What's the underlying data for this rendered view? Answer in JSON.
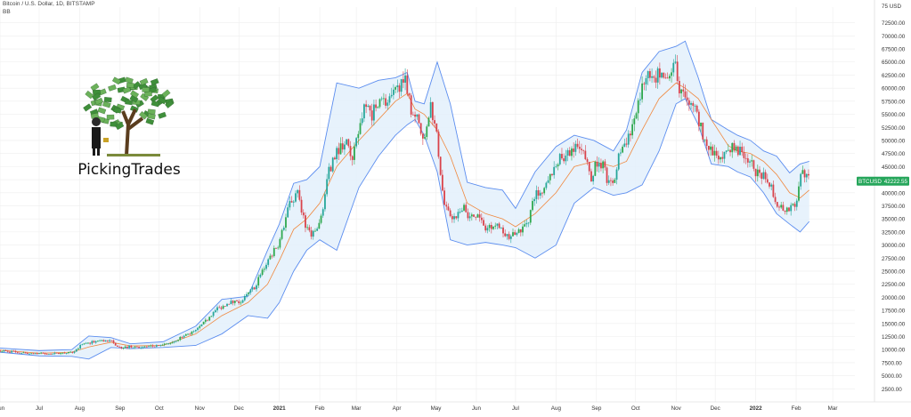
{
  "header": {
    "title": "Bitcoin / U.S. Dollar, 1D, BITSTAMP",
    "indicator": "BB"
  },
  "logo": {
    "text": "PickingTrades",
    "image": "money-tree-logo"
  },
  "colors": {
    "up": "#26a69a",
    "up_bright": "#2ea84f",
    "down": "#d9434b",
    "band_line": "#5b8def",
    "band_fill": "#e3f0fb",
    "basis": "#f0883e",
    "price_tag": "#26a65b",
    "grid": "#eeeeee"
  },
  "chart_data": {
    "type": "candlestick",
    "series_name": "BTCUSD",
    "last_price": "42222.55",
    "x_labels": [
      "Jun",
      "Jul",
      "Aug",
      "Sep",
      "Oct",
      "Nov",
      "Dec",
      "2021",
      "Feb",
      "Mar",
      "Apr",
      "May",
      "Jun",
      "Jul",
      "Aug",
      "Sep",
      "Oct",
      "Nov",
      "Dec",
      "2022",
      "Feb",
      "Mar"
    ],
    "x_label_days": [
      0,
      30,
      61,
      92,
      122,
      153,
      183,
      214,
      245,
      273,
      304,
      334,
      365,
      395,
      426,
      457,
      487,
      518,
      548,
      579,
      610,
      638
    ],
    "y_axis": {
      "ticks": [
        2500,
        5000,
        7500,
        10000,
        12500,
        15000,
        17500,
        20000,
        22500,
        25000,
        27500,
        30000,
        32500,
        35000,
        37500,
        40000,
        42500,
        45000,
        47500,
        50000,
        52500,
        55000,
        57500,
        60000,
        62500,
        65000,
        67500,
        70000,
        72500
      ],
      "tick_labels": [
        "2500.00",
        "5000.00",
        "7500.00",
        "10000.00",
        "12500.00",
        "15000.00",
        "17500.00",
        "20000.00",
        "22500.00",
        "25000.00",
        "27500.00",
        "30000.00",
        "32500.00",
        "35000.00",
        "37500.00",
        "40000.00",
        "42500.00",
        "45000.00",
        "47500.00",
        "50000.00",
        "52500.00",
        "55000.00",
        "57500.00",
        "60000.00",
        "62500.00",
        "65000.00",
        "67500.00",
        "70000.00",
        "72500.00"
      ],
      "top_label": "75 USD",
      "range": [
        0,
        75500
      ]
    },
    "x_range_days": [
      0,
      655
    ],
    "close_path": [
      [
        0,
        9800
      ],
      [
        20,
        9300
      ],
      [
        40,
        9200
      ],
      [
        55,
        9400
      ],
      [
        62,
        10800
      ],
      [
        75,
        11700
      ],
      [
        85,
        11600
      ],
      [
        92,
        10400
      ],
      [
        100,
        10600
      ],
      [
        110,
        10500
      ],
      [
        122,
        10700
      ],
      [
        130,
        11200
      ],
      [
        140,
        12500
      ],
      [
        150,
        13600
      ],
      [
        158,
        15500
      ],
      [
        165,
        17500
      ],
      [
        175,
        19000
      ],
      [
        185,
        19200
      ],
      [
        195,
        22000
      ],
      [
        205,
        27000
      ],
      [
        214,
        30500
      ],
      [
        222,
        38000
      ],
      [
        228,
        40000
      ],
      [
        235,
        33000
      ],
      [
        240,
        32000
      ],
      [
        245,
        34000
      ],
      [
        252,
        44000
      ],
      [
        258,
        48000
      ],
      [
        265,
        50000
      ],
      [
        270,
        46000
      ],
      [
        275,
        52000
      ],
      [
        280,
        58000
      ],
      [
        285,
        55000
      ],
      [
        290,
        58000
      ],
      [
        297,
        57000
      ],
      [
        304,
        59500
      ],
      [
        310,
        63000
      ],
      [
        315,
        56000
      ],
      [
        320,
        54000
      ],
      [
        325,
        49000
      ],
      [
        330,
        57000
      ],
      [
        335,
        50000
      ],
      [
        340,
        38000
      ],
      [
        343,
        36000
      ],
      [
        350,
        35000
      ],
      [
        355,
        38000
      ],
      [
        360,
        35000
      ],
      [
        365,
        36000
      ],
      [
        372,
        33000
      ],
      [
        378,
        34000
      ],
      [
        385,
        33000
      ],
      [
        390,
        31500
      ],
      [
        395,
        32000
      ],
      [
        400,
        33000
      ],
      [
        405,
        35000
      ],
      [
        410,
        40000
      ],
      [
        415,
        39500
      ],
      [
        420,
        42000
      ],
      [
        426,
        46000
      ],
      [
        432,
        47000
      ],
      [
        440,
        49000
      ],
      [
        448,
        47000
      ],
      [
        453,
        43000
      ],
      [
        457,
        46000
      ],
      [
        462,
        45000
      ],
      [
        466,
        42000
      ],
      [
        470,
        41500
      ],
      [
        475,
        48000
      ],
      [
        480,
        50000
      ],
      [
        487,
        55000
      ],
      [
        492,
        60000
      ],
      [
        496,
        62000
      ],
      [
        502,
        61000
      ],
      [
        505,
        63500
      ],
      [
        510,
        61000
      ],
      [
        515,
        63000
      ],
      [
        518,
        65000
      ],
      [
        520,
        60000
      ],
      [
        525,
        58000
      ],
      [
        530,
        57000
      ],
      [
        535,
        54000
      ],
      [
        540,
        50000
      ],
      [
        545,
        48000
      ],
      [
        550,
        47000
      ],
      [
        555,
        47000
      ],
      [
        560,
        49000
      ],
      [
        565,
        48000
      ],
      [
        570,
        47500
      ],
      [
        575,
        46000
      ],
      [
        579,
        44000
      ],
      [
        585,
        43000
      ],
      [
        590,
        42000
      ],
      [
        595,
        38000
      ],
      [
        600,
        37000
      ],
      [
        605,
        37000
      ],
      [
        610,
        38000
      ],
      [
        613,
        44000
      ],
      [
        617,
        43500
      ],
      [
        620,
        42222
      ]
    ],
    "bollinger": {
      "upper": [
        [
          0,
          10300
        ],
        [
          30,
          9800
        ],
        [
          55,
          10000
        ],
        [
          68,
          12600
        ],
        [
          85,
          12300
        ],
        [
          100,
          11100
        ],
        [
          125,
          11500
        ],
        [
          150,
          14500
        ],
        [
          170,
          19600
        ],
        [
          190,
          20200
        ],
        [
          205,
          29000
        ],
        [
          214,
          34000
        ],
        [
          225,
          41800
        ],
        [
          235,
          42500
        ],
        [
          245,
          45000
        ],
        [
          258,
          61000
        ],
        [
          275,
          60000
        ],
        [
          290,
          61500
        ],
        [
          303,
          62000
        ],
        [
          312,
          63000
        ],
        [
          318,
          57500
        ],
        [
          325,
          57000
        ],
        [
          335,
          65000
        ],
        [
          345,
          57000
        ],
        [
          358,
          42000
        ],
        [
          372,
          41000
        ],
        [
          385,
          40500
        ],
        [
          395,
          37000
        ],
        [
          410,
          44000
        ],
        [
          426,
          48800
        ],
        [
          440,
          51000
        ],
        [
          455,
          50000
        ],
        [
          470,
          48000
        ],
        [
          480,
          52000
        ],
        [
          492,
          63000
        ],
        [
          505,
          67000
        ],
        [
          518,
          68000
        ],
        [
          525,
          69000
        ],
        [
          535,
          62000
        ],
        [
          545,
          54000
        ],
        [
          558,
          52000
        ],
        [
          565,
          51000
        ],
        [
          575,
          50000
        ],
        [
          585,
          48000
        ],
        [
          595,
          47000
        ],
        [
          605,
          43800
        ],
        [
          613,
          45500
        ],
        [
          620,
          46000
        ]
      ],
      "basis": [
        [
          0,
          9900
        ],
        [
          30,
          9300
        ],
        [
          55,
          9500
        ],
        [
          68,
          10500
        ],
        [
          85,
          11400
        ],
        [
          100,
          10700
        ],
        [
          125,
          10800
        ],
        [
          150,
          13000
        ],
        [
          170,
          16500
        ],
        [
          190,
          19000
        ],
        [
          205,
          22500
        ],
        [
          214,
          27000
        ],
        [
          225,
          33000
        ],
        [
          235,
          35000
        ],
        [
          245,
          38000
        ],
        [
          258,
          45000
        ],
        [
          275,
          50000
        ],
        [
          290,
          54000
        ],
        [
          303,
          57500
        ],
        [
          312,
          59000
        ],
        [
          318,
          56000
        ],
        [
          325,
          55000
        ],
        [
          335,
          52000
        ],
        [
          345,
          47000
        ],
        [
          358,
          38000
        ],
        [
          372,
          36000
        ],
        [
          385,
          35000
        ],
        [
          395,
          33500
        ],
        [
          410,
          36000
        ],
        [
          426,
          40000
        ],
        [
          440,
          45000
        ],
        [
          455,
          46000
        ],
        [
          470,
          45000
        ],
        [
          480,
          46000
        ],
        [
          492,
          52000
        ],
        [
          505,
          58000
        ],
        [
          518,
          61000
        ],
        [
          525,
          60000
        ],
        [
          535,
          58000
        ],
        [
          545,
          54000
        ],
        [
          558,
          49000
        ],
        [
          565,
          48000
        ],
        [
          575,
          47500
        ],
        [
          585,
          46000
        ],
        [
          595,
          43500
        ],
        [
          605,
          40000
        ],
        [
          613,
          39000
        ],
        [
          620,
          40500
        ]
      ],
      "lower": [
        [
          0,
          9500
        ],
        [
          30,
          8800
        ],
        [
          55,
          8700
        ],
        [
          68,
          8200
        ],
        [
          85,
          10400
        ],
        [
          100,
          10200
        ],
        [
          125,
          10400
        ],
        [
          150,
          10800
        ],
        [
          170,
          13000
        ],
        [
          190,
          16500
        ],
        [
          205,
          16000
        ],
        [
          214,
          19000
        ],
        [
          225,
          25000
        ],
        [
          235,
          29000
        ],
        [
          245,
          31000
        ],
        [
          258,
          29000
        ],
        [
          275,
          41000
        ],
        [
          290,
          47000
        ],
        [
          303,
          51000
        ],
        [
          312,
          53000
        ],
        [
          318,
          54000
        ],
        [
          325,
          51000
        ],
        [
          335,
          44000
        ],
        [
          345,
          31000
        ],
        [
          358,
          30000
        ],
        [
          372,
          30500
        ],
        [
          385,
          30000
        ],
        [
          395,
          29500
        ],
        [
          410,
          27500
        ],
        [
          426,
          30000
        ],
        [
          440,
          38000
        ],
        [
          455,
          41000
        ],
        [
          470,
          39500
        ],
        [
          480,
          40000
        ],
        [
          492,
          41500
        ],
        [
          505,
          48000
        ],
        [
          518,
          57000
        ],
        [
          525,
          58000
        ],
        [
          535,
          53000
        ],
        [
          545,
          45500
        ],
        [
          558,
          45000
        ],
        [
          565,
          44000
        ],
        [
          575,
          43000
        ],
        [
          585,
          40000
        ],
        [
          595,
          36000
        ],
        [
          605,
          34000
        ],
        [
          613,
          32500
        ],
        [
          620,
          34500
        ]
      ]
    }
  }
}
